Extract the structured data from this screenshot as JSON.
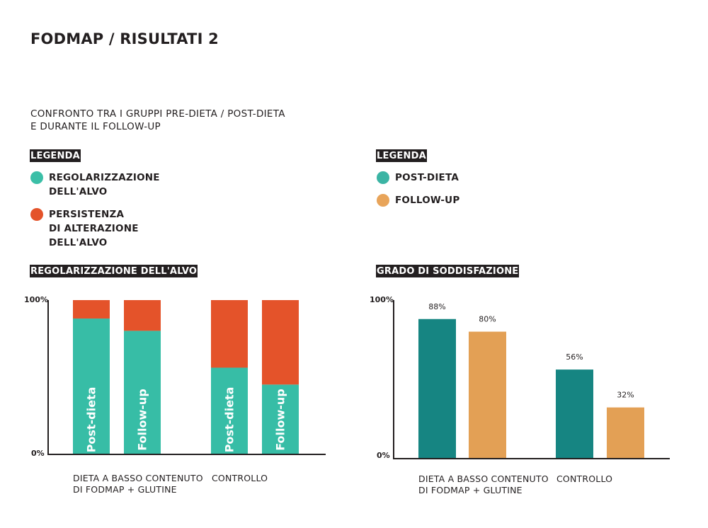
{
  "page_title": "FODMAP / RISULTATI 2",
  "subtitle": "CONFRONTO TRA I GRUPPI PRE-DIETA / POST-DIETA\nE DURANTE IL FOLLOW-UP",
  "left_legend": {
    "heading": "LEGENDA",
    "items": [
      {
        "label": "REGOLARIZZAZIONE\nDELL'ALVO",
        "color": "#3bbfa7"
      },
      {
        "label": "PERSISTENZA\nDI ALTERAZIONE\nDELL'ALVO",
        "color": "#e4532a"
      }
    ]
  },
  "right_legend": {
    "heading": "LEGENDA",
    "items": [
      {
        "label": "POST-DIETA",
        "color": "#3bb4a4"
      },
      {
        "label": "FOLLOW-UP",
        "color": "#e8a45a"
      }
    ]
  },
  "chart_data": [
    {
      "type": "bar",
      "stacked": true,
      "title": "REGOLARIZZAZIONE DELL'ALVO",
      "ylim": [
        0,
        100
      ],
      "yticks": [
        "0%",
        "100%"
      ],
      "groups": [
        "DIETA A BASSO CONTENUTO\nDI FODMAP + GLUTINE",
        "CONTROLLO"
      ],
      "bars": [
        {
          "group": 0,
          "label": "Post-dieta",
          "regolarizzazione": 88,
          "persistenza": 12
        },
        {
          "group": 0,
          "label": "Follow-up",
          "regolarizzazione": 80,
          "persistenza": 20
        },
        {
          "group": 1,
          "label": "Post-dieta",
          "regolarizzazione": 56,
          "persistenza": 44
        },
        {
          "group": 1,
          "label": "Follow-up",
          "regolarizzazione": 45,
          "persistenza": 55
        }
      ],
      "colors": {
        "regolarizzazione": "#37bda6",
        "persistenza": "#e4532a"
      }
    },
    {
      "type": "bar",
      "title": "GRADO DI SODDISFAZIONE",
      "ylim": [
        0,
        100
      ],
      "yticks": [
        "0%",
        "100%"
      ],
      "groups": [
        "DIETA A BASSO CONTENUTO\nDI FODMAP + GLUTINE",
        "CONTROLLO"
      ],
      "series": [
        {
          "name": "POST-DIETA",
          "values": [
            88,
            56
          ],
          "value_labels": [
            "88%",
            "56%"
          ],
          "color": "#168582"
        },
        {
          "name": "FOLLOW-UP",
          "values": [
            80,
            32
          ],
          "value_labels": [
            "80%",
            "32%"
          ],
          "color": "#e3a055"
        }
      ]
    }
  ]
}
